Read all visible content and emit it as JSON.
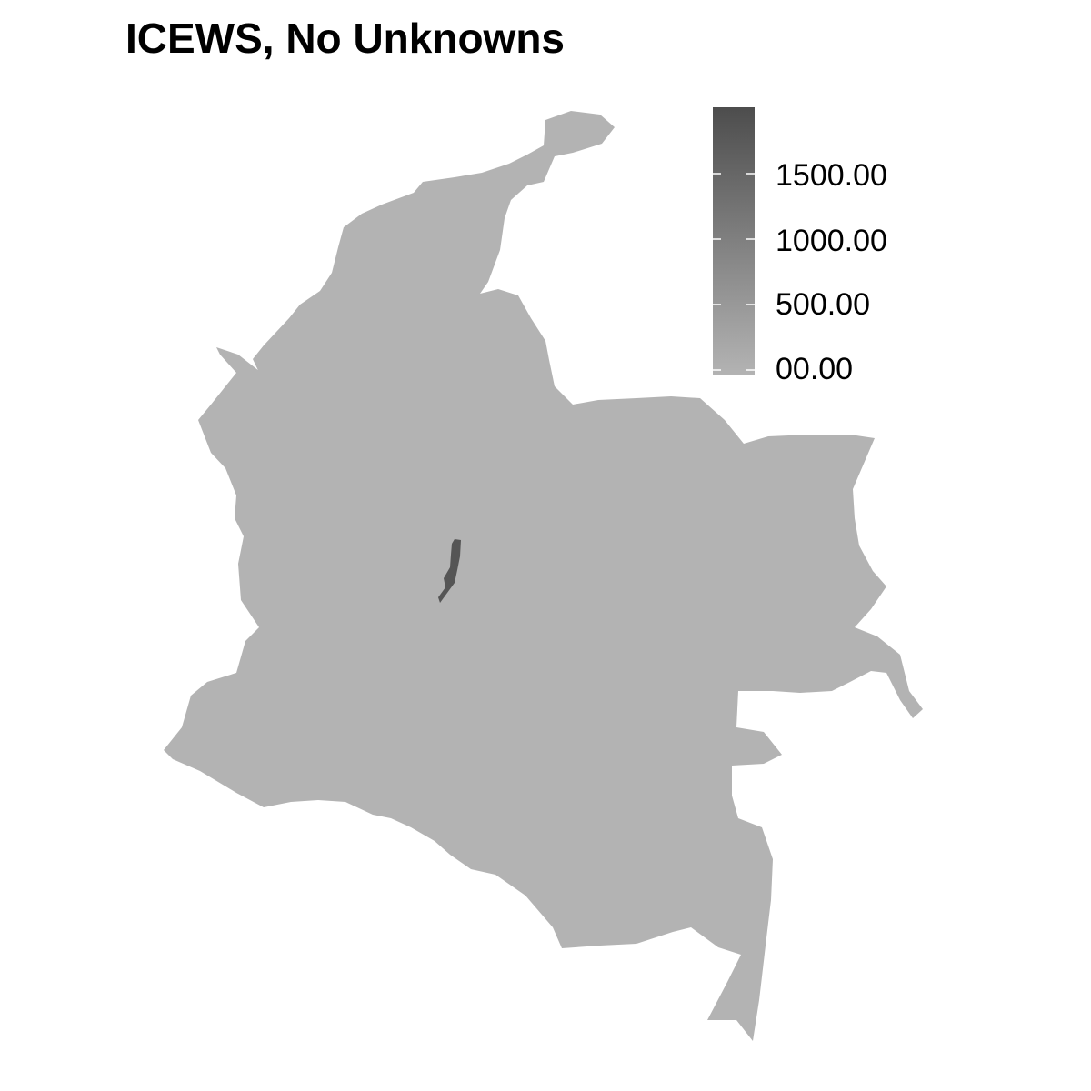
{
  "title": "ICEWS, No Unknowns",
  "legend": {
    "labels": [
      "1500.00",
      "1000.00",
      "500.00",
      "00.00"
    ],
    "breaks": [
      1500,
      1000,
      500,
      0
    ],
    "range": [
      0,
      2000
    ],
    "color_low": "#b3b3b3",
    "color_high": "#4d4d4d"
  },
  "map": {
    "base_fill": "#b3b3b3",
    "hotspot_fill": "#555555"
  }
}
